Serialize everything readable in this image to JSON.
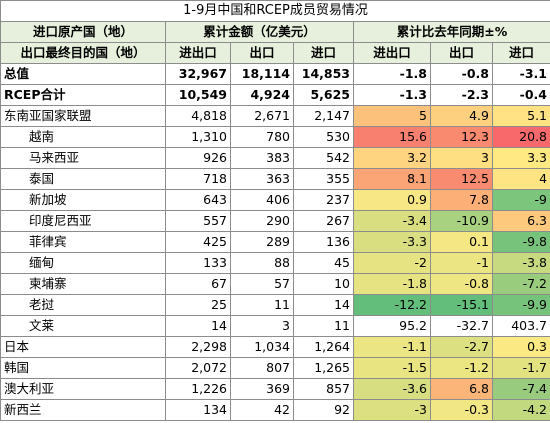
{
  "title": "1-9月中国和RCEP成员贸易情况",
  "header": {
    "row_label_top": "进口原产国（地）",
    "row_label_bottom": "出口最终目的国（地）",
    "group_amount": "累计金额（亿美元）",
    "group_change": "累计比去年同期±%",
    "columns": [
      "进出口",
      "出口",
      "进口",
      "进出口",
      "出口",
      "进口"
    ]
  },
  "rows": [
    {
      "label": "总值",
      "values": [
        "32,967",
        "18,114",
        "14,853",
        "-1.8",
        "-0.8",
        "-3.1"
      ],
      "fills": [
        null,
        null,
        null
      ]
    },
    {
      "label": "RCEP合计",
      "values": [
        "10,549",
        "4,924",
        "5,625",
        "-1.3",
        "-2.3",
        "-0.4"
      ],
      "fills": [
        null,
        null,
        null
      ]
    },
    {
      "label": "东南亚国家联盟",
      "values": [
        "4,818",
        "2,671",
        "2,147",
        "5",
        "4.9",
        "5.1"
      ],
      "fills": [
        "#fcc27b",
        "#fdd07f",
        "#fee283"
      ]
    },
    {
      "label": "越南",
      "values": [
        "1,310",
        "780",
        "530",
        "15.6",
        "12.3",
        "20.8"
      ],
      "fills": [
        "#f8806e",
        "#f98a70",
        "#f8696b"
      ]
    },
    {
      "label": "马来西亚",
      "values": [
        "926",
        "383",
        "542",
        "3.2",
        "3",
        "3.3"
      ],
      "fills": [
        "#fed480",
        "#fee082",
        "#fee983"
      ]
    },
    {
      "label": "泰国",
      "values": [
        "718",
        "363",
        "355",
        "8.1",
        "12.5",
        "4"
      ],
      "fills": [
        "#fba476",
        "#f98b70",
        "#fee483"
      ]
    },
    {
      "label": "新加坡",
      "values": [
        "643",
        "406",
        "237",
        "0.9",
        "7.8",
        "-9"
      ],
      "fills": [
        "#f7e885",
        "#fcb078",
        "#7cc57d"
      ]
    },
    {
      "label": "印度尼西亚",
      "values": [
        "557",
        "290",
        "267",
        "-3.4",
        "-10.9",
        "6.3"
      ],
      "fills": [
        "#d9df81",
        "#a8d27f",
        "#fdca7d"
      ]
    },
    {
      "label": "菲律宾",
      "values": [
        "425",
        "289",
        "136",
        "-3.3",
        "0.1",
        "-9.8"
      ],
      "fills": [
        "#d9df81",
        "#f5e884",
        "#77c37c"
      ]
    },
    {
      "label": "缅甸",
      "values": [
        "133",
        "88",
        "45",
        "-2",
        "-1",
        "-3.8"
      ],
      "fills": [
        "#e5e382",
        "#ece583",
        "#c8da80"
      ]
    },
    {
      "label": "柬埔寨",
      "values": [
        "67",
        "57",
        "10",
        "-1.8",
        "-0.8",
        "-7.2"
      ],
      "fills": [
        "#e6e382",
        "#ede683",
        "#9acc7e"
      ]
    },
    {
      "label": "老挝",
      "values": [
        "25",
        "11",
        "14",
        "-12.2",
        "-15.1",
        "-9.9"
      ],
      "fills": [
        "#63be7b",
        "#63be7b",
        "#76c37c"
      ]
    },
    {
      "label": "文莱",
      "values": [
        "14",
        "3",
        "11",
        "95.2",
        "-32.7",
        "403.7"
      ],
      "fills": [
        null,
        null,
        null
      ]
    },
    {
      "label": "日本",
      "values": [
        "2,298",
        "1,034",
        "1,264",
        "-1.1",
        "-2.7",
        "0.3"
      ],
      "fills": [
        "#ece583",
        "#dde081",
        "#fbe983"
      ]
    },
    {
      "label": "韩国",
      "values": [
        "2,072",
        "807",
        "1,265",
        "-1.5",
        "-1.2",
        "-1.7"
      ],
      "fills": [
        "#e8e482",
        "#ebe582",
        "#e2e281"
      ]
    },
    {
      "label": "澳大利亚",
      "values": [
        "1,226",
        "369",
        "857",
        "-3.6",
        "6.8",
        "-7.4"
      ],
      "fills": [
        "#d6de81",
        "#fcb579",
        "#98cb7e"
      ]
    },
    {
      "label": "新西兰",
      "values": [
        "134",
        "42",
        "92",
        "-3",
        "-0.3",
        "-4.2"
      ],
      "fills": [
        "#dce081",
        "#f1e784",
        "#c2d980"
      ]
    }
  ]
}
